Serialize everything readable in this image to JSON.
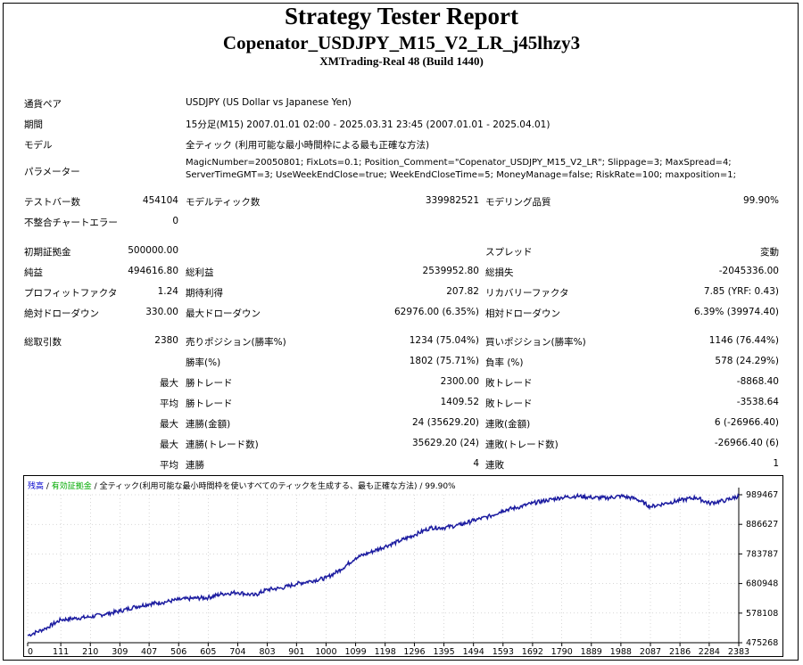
{
  "header": {
    "title": "Strategy Tester Report",
    "subtitle": "Copenator_USDJPY_M15_V2_LR_j45lhzy3",
    "server": "XMTrading-Real 48 (Build 1440)"
  },
  "info": {
    "pair_label": "通貨ペア",
    "pair_value": "USDJPY (US Dollar vs Japanese Yen)",
    "period_label": "期間",
    "period_value": "15分足(M15) 2007.01.01 02:00 - 2025.03.31 23:45 (2007.01.01 - 2025.04.01)",
    "model_label": "モデル",
    "model_value": "全ティック (利用可能な最小時間枠による最も正確な方法)",
    "params_label": "パラメーター",
    "params_line1": "MagicNumber=20050801; FixLots=0.1; Position_Comment=\"Copenator_USDJPY_M15_V2_LR\"; Slippage=3; MaxSpread=4;",
    "params_line2": "ServerTimeGMT=3; UseWeekEndClose=true; WeekEndCloseTime=5; MoneyManage=false; RiskRate=100; maxposition=1;"
  },
  "stats": {
    "bars_label": "テストバー数",
    "bars_value": "454104",
    "ticks_label": "モデルティック数",
    "ticks_value": "339982521",
    "quality_label": "モデリング品質",
    "quality_value": "99.90%",
    "errors_label": "不整合チャートエラー",
    "errors_value": "0",
    "deposit_label": "初期証拠金",
    "deposit_value": "500000.00",
    "spread_label": "スプレッド",
    "spread_value": "変動",
    "net_label": "純益",
    "net_value": "494616.80",
    "gross_profit_label": "総利益",
    "gross_profit_value": "2539952.80",
    "gross_loss_label": "総損失",
    "gross_loss_value": "-2045336.00",
    "pf_label": "プロフィットファクタ",
    "pf_value": "1.24",
    "expected_label": "期待利得",
    "expected_value": "207.82",
    "recovery_label": "リカバリーファクタ",
    "recovery_value": "7.85 (YRF: 0.43)",
    "abs_dd_label": "絶対ドローダウン",
    "abs_dd_value": "330.00",
    "max_dd_label": "最大ドローダウン",
    "max_dd_value": "62976.00 (6.35%)",
    "rel_dd_label": "相対ドローダウン",
    "rel_dd_value": "6.39% (39974.40)",
    "trades_label": "総取引数",
    "trades_value": "2380",
    "short_label": "売りポジション(勝率%)",
    "short_value": "1234 (75.04%)",
    "long_label": "買いポジション(勝率%)",
    "long_value": "1146 (76.44%)",
    "winrate_label": "勝率(%)",
    "winrate_value": "1802 (75.71%)",
    "lossrate_label": "負率 (%)",
    "lossrate_value": "578 (24.29%)",
    "max_prefix": "最大",
    "avg_prefix": "平均",
    "max_win_label": "勝トレード",
    "max_win_value": "2300.00",
    "max_loss_label": "敗トレード",
    "max_loss_value": "-8868.40",
    "avg_win_label": "勝トレード",
    "avg_win_value": "1409.52",
    "avg_loss_label": "敗トレード",
    "avg_loss_value": "-3538.64",
    "cons_wins_amt_label": "連勝(金額)",
    "cons_wins_amt_value": "24 (35629.20)",
    "cons_loss_amt_label": "連敗(金額)",
    "cons_loss_amt_value": "6 (-26966.40)",
    "cons_wins_cnt_label": "連勝(トレード数)",
    "cons_wins_cnt_value": "35629.20 (24)",
    "cons_loss_cnt_label": "連敗(トレード数)",
    "cons_loss_cnt_value": "-26966.40 (6)",
    "avg_cons_wins_label": "連勝",
    "avg_cons_wins_value": "4",
    "avg_cons_loss_label": "連敗",
    "avg_cons_loss_value": "1"
  },
  "chart_legend": {
    "balance": "残高",
    "sep1": " / ",
    "equity": "有効証拠金",
    "sep2": " / ",
    "model": "全ティック(利用可能な最小時間枠を使いすべてのティックを生成する、最も正確な方法)",
    "sep3": " / ",
    "quality": "99.90%"
  },
  "colors": {
    "balance": "#0000cc",
    "equity": "#00aa00",
    "line": "#1c1ca0",
    "grid": "#b0b0b0"
  },
  "chart_data": {
    "type": "line",
    "x_ticks": [
      "0",
      "111",
      "210",
      "309",
      "407",
      "506",
      "605",
      "704",
      "803",
      "901",
      "1000",
      "1099",
      "1198",
      "1296",
      "1395",
      "1494",
      "1593",
      "1692",
      "1790",
      "1889",
      "1988",
      "2087",
      "2186",
      "2284",
      "2383"
    ],
    "y_ticks": [
      "989467",
      "886627",
      "783787",
      "680948",
      "578108",
      "475268"
    ],
    "ylim": [
      475268,
      989467
    ],
    "xlim": [
      0,
      2383
    ],
    "series": [
      {
        "name": "残高",
        "x": [
          0,
          60,
          111,
          160,
          210,
          260,
          309,
          360,
          407,
          450,
          506,
          560,
          605,
          650,
          704,
          760,
          803,
          850,
          901,
          950,
          1000,
          1050,
          1099,
          1150,
          1198,
          1250,
          1296,
          1350,
          1395,
          1450,
          1494,
          1550,
          1593,
          1640,
          1692,
          1740,
          1790,
          1840,
          1889,
          1940,
          1988,
          2040,
          2087,
          2140,
          2186,
          2240,
          2284,
          2340,
          2383
        ],
        "values": [
          500000,
          525000,
          555000,
          560000,
          565000,
          575000,
          585000,
          600000,
          610000,
          615000,
          625000,
          630000,
          632000,
          645000,
          650000,
          640000,
          660000,
          665000,
          680000,
          690000,
          700000,
          730000,
          770000,
          790000,
          810000,
          830000,
          850000,
          875000,
          875000,
          885000,
          900000,
          915000,
          935000,
          945000,
          960000,
          970000,
          980000,
          985000,
          980000,
          978000,
          985000,
          975000,
          948000,
          960000,
          970000,
          980000,
          960000,
          970000,
          985000
        ]
      }
    ]
  }
}
